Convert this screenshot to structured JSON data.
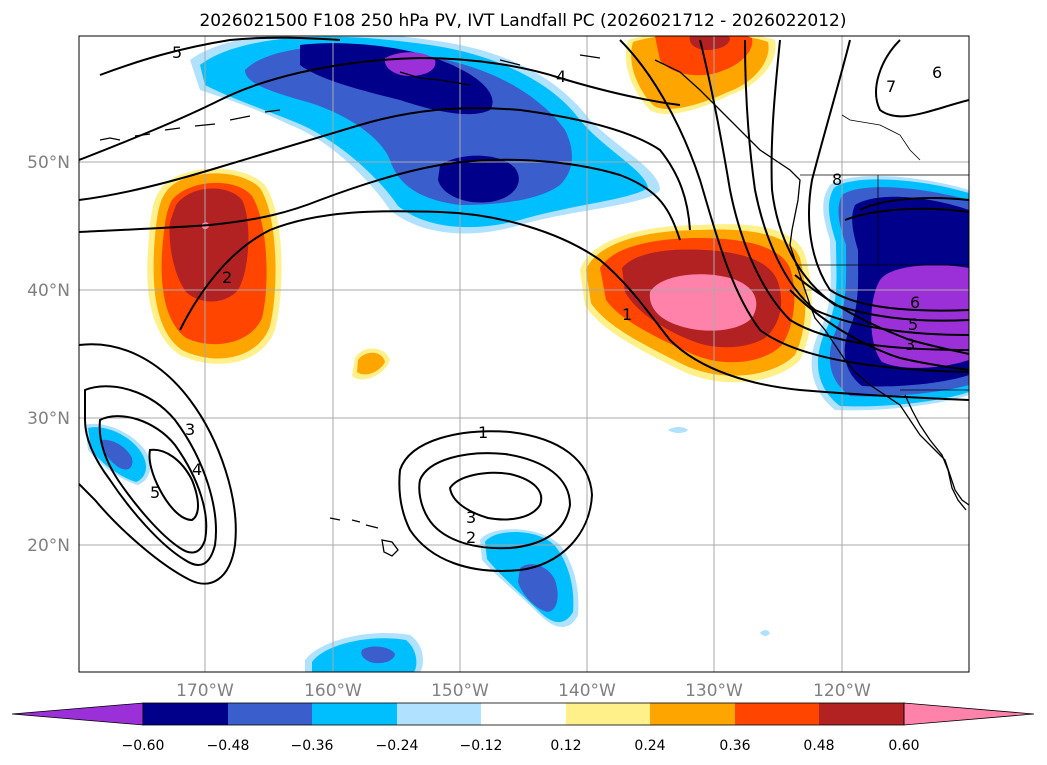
{
  "title": "2026021500 F108 250 hPa PV, IVT Landfall PC (2026021712 - 2026022012)",
  "lat_ticks": [
    "50°N",
    "40°N",
    "30°N",
    "20°N"
  ],
  "lon_ticks": [
    "170°W",
    "160°W",
    "150°W",
    "140°W",
    "130°W",
    "120°W"
  ],
  "colorbar": {
    "labels": [
      "−0.60",
      "−0.48",
      "−0.36",
      "−0.24",
      "−0.12",
      "0.12",
      "0.24",
      "0.36",
      "0.48",
      "0.60"
    ],
    "colors": [
      "#9b30d8",
      "#00008b",
      "#3a5fcd",
      "#00bfff",
      "#b0e2ff",
      "#ffffff",
      "#fff08a",
      "#ffa500",
      "#ff4500",
      "#b22222",
      "#ff82ab"
    ]
  },
  "contour_labels": {
    "c5_top": "5",
    "c4_top": "4",
    "c2_left": "2",
    "c1_right": "1",
    "c3_left": "3",
    "c4_left": "4",
    "c5_left": "5",
    "c1_mid": "1",
    "c3_mid": "3",
    "c2_mid": "2",
    "c6_ne": "6",
    "c7_ne": "7",
    "c8_ne": "8",
    "c6_e": "6",
    "c5_e": "5",
    "c3_e": "3"
  }
}
